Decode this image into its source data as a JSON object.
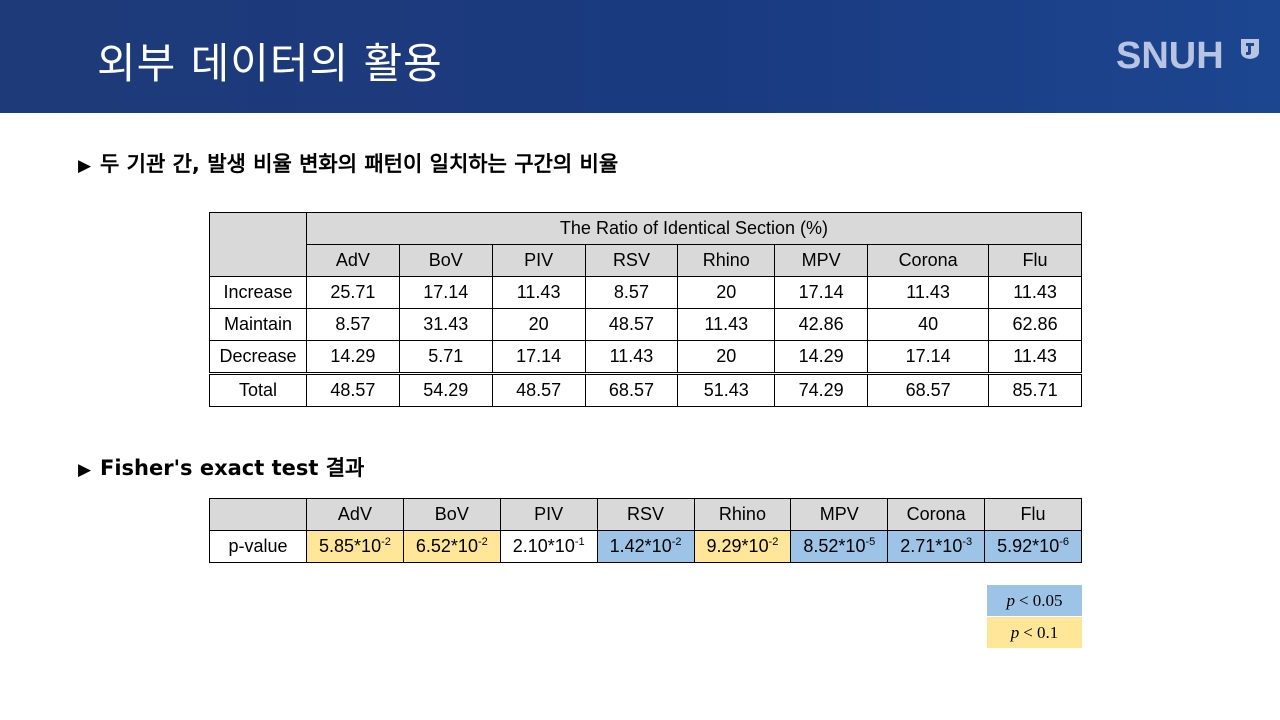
{
  "header": {
    "title": "외부 데이터의 활용",
    "logo": "SNUH",
    "background_color": "#1e3a78"
  },
  "section1": {
    "bullet": "▶",
    "title": "두 기관 간, 발생 비율 변화의 패턴이 일치하는 구간의 비율"
  },
  "table1": {
    "group_header": "The Ratio of Identical Section (%)",
    "columns": [
      "AdV",
      "BoV",
      "PIV",
      "RSV",
      "Rhino",
      "MPV",
      "Corona",
      "Flu"
    ],
    "rows": [
      {
        "label": "Increase",
        "values": [
          "25.71",
          "17.14",
          "11.43",
          "8.57",
          "20",
          "17.14",
          "11.43",
          "11.43"
        ]
      },
      {
        "label": "Maintain",
        "values": [
          "8.57",
          "31.43",
          "20",
          "48.57",
          "11.43",
          "42.86",
          "40",
          "62.86"
        ]
      },
      {
        "label": "Decrease",
        "values": [
          "14.29",
          "5.71",
          "17.14",
          "11.43",
          "20",
          "14.29",
          "17.14",
          "11.43"
        ]
      },
      {
        "label": "Total",
        "values": [
          "48.57",
          "54.29",
          "48.57",
          "68.57",
          "51.43",
          "74.29",
          "68.57",
          "85.71"
        ]
      }
    ]
  },
  "section2": {
    "bullet": "▶",
    "title": "Fisher's exact test 결과"
  },
  "table2": {
    "columns": [
      "AdV",
      "BoV",
      "PIV",
      "RSV",
      "Rhino",
      "MPV",
      "Corona",
      "Flu"
    ],
    "row_label": "p-value",
    "cells": [
      {
        "base": "5.85*10",
        "exp": "-2",
        "highlight": "yellow"
      },
      {
        "base": "6.52*10",
        "exp": "-2",
        "highlight": "yellow"
      },
      {
        "base": "2.10*10",
        "exp": "-1",
        "highlight": "none"
      },
      {
        "base": "1.42*10",
        "exp": "-2",
        "highlight": "blue"
      },
      {
        "base": "9.29*10",
        "exp": "-2",
        "highlight": "yellow"
      },
      {
        "base": "8.52*10",
        "exp": "-5",
        "highlight": "blue"
      },
      {
        "base": "2.71*10",
        "exp": "-3",
        "highlight": "blue"
      },
      {
        "base": "5.92*10",
        "exp": "-6",
        "highlight": "blue"
      }
    ]
  },
  "legend": [
    {
      "symbol": "p",
      "text": "< 0.05",
      "color": "#9dc3e6"
    },
    {
      "symbol": "p",
      "text": "< 0.1",
      "color": "#ffe699"
    }
  ]
}
